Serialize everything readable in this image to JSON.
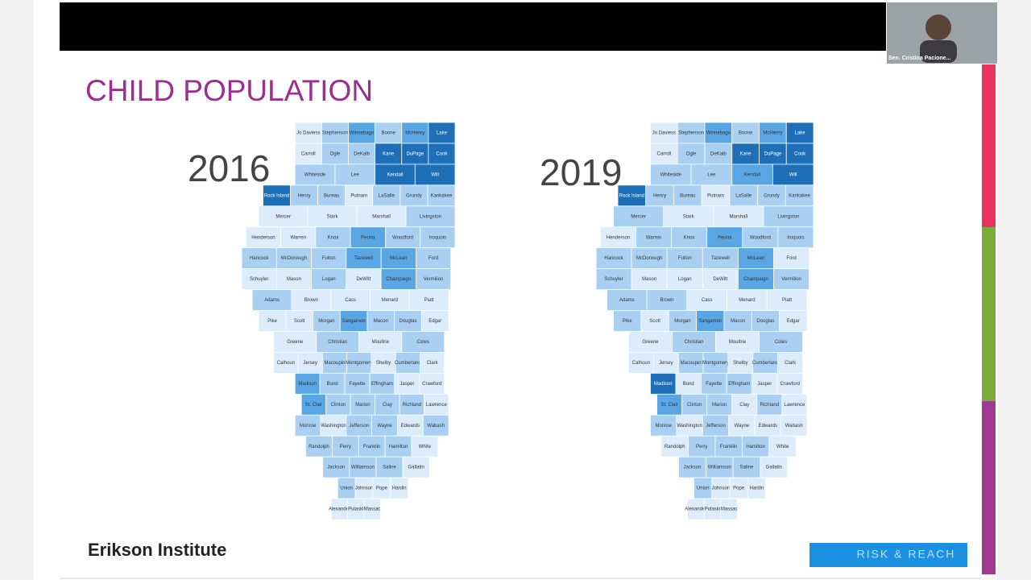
{
  "header": {
    "title": "CHILD POPULATION"
  },
  "participant": {
    "name": "Sen. Cristina Pacione..."
  },
  "counties": [
    [
      "Jo Daviess",
      "Stephenson",
      "Winnebago",
      "Boone",
      "McHenry",
      "Lake"
    ],
    [
      "Carroll",
      "Ogle",
      "DeKalb",
      "Kane",
      "DuPage",
      "Cook"
    ],
    [
      "Whiteside",
      "Lee",
      "Kendall",
      "Will"
    ],
    [
      "Rock Island",
      "Henry",
      "Bureau",
      "Putnam",
      "LaSalle",
      "Grundy",
      "Kankakee"
    ],
    [
      "Mercer",
      "Stark",
      "Marshall",
      "Livingston"
    ],
    [
      "Henderson",
      "Warren",
      "Knox",
      "Peoria",
      "Woodford",
      "Iroquois"
    ],
    [
      "Hancock",
      "McDonough",
      "Fulton",
      "Tazewell",
      "McLean",
      "Ford"
    ],
    [
      "Schuyler",
      "Mason",
      "Logan",
      "DeWitt",
      "Champaign",
      "Vermilion"
    ],
    [
      "Adams",
      "Brown",
      "Cass",
      "Menard",
      "Piatt"
    ],
    [
      "Pike",
      "Scott",
      "Morgan",
      "Sangamon",
      "Macon",
      "Douglas",
      "Edgar"
    ],
    [
      "Greene",
      "Christian",
      "Moultrie",
      "Coles"
    ],
    [
      "Calhoun",
      "Jersey",
      "Macoupin",
      "Montgomery",
      "Shelby",
      "Cumberland",
      "Clark"
    ],
    [
      "Madison",
      "Bond",
      "Fayette",
      "Effingham",
      "Jasper",
      "Crawford"
    ],
    [
      "St. Clair",
      "Clinton",
      "Marion",
      "Clay",
      "Richland",
      "Lawrence"
    ],
    [
      "Monroe",
      "Washington",
      "Jefferson",
      "Wayne",
      "Edwards",
      "Wabash"
    ],
    [
      "Randolph",
      "Perry",
      "Franklin",
      "Hamilton",
      "White"
    ],
    [
      "Jackson",
      "Williamson",
      "Saline",
      "Gallatin"
    ],
    [
      "Union",
      "Johnson",
      "Pope",
      "Hardin"
    ],
    [
      "Alexander",
      "Pulaski",
      "Massac"
    ]
  ],
  "palette": [
    "#dcecfa",
    "#a9d0f2",
    "#5aa6e4",
    "#1f6fb8"
  ],
  "maps": [
    {
      "year": "2016",
      "shades": [
        [
          0,
          1,
          2,
          1,
          2,
          3
        ],
        [
          0,
          1,
          1,
          3,
          3,
          3
        ],
        [
          1,
          1,
          3,
          3
        ],
        [
          3,
          1,
          1,
          0,
          1,
          1,
          1
        ],
        [
          0,
          0,
          0,
          1
        ],
        [
          0,
          0,
          1,
          2,
          1,
          1
        ],
        [
          1,
          1,
          1,
          2,
          2,
          1
        ],
        [
          0,
          0,
          1,
          0,
          2,
          1
        ],
        [
          1,
          0,
          0,
          0,
          0
        ],
        [
          0,
          0,
          1,
          2,
          1,
          1,
          0
        ],
        [
          0,
          1,
          0,
          1
        ],
        [
          0,
          0,
          1,
          1,
          0,
          1,
          0
        ],
        [
          2,
          1,
          1,
          1,
          0,
          0
        ],
        [
          2,
          1,
          1,
          1,
          1,
          0
        ],
        [
          1,
          0,
          1,
          1,
          0,
          1
        ],
        [
          1,
          1,
          1,
          1,
          0
        ],
        [
          1,
          1,
          1,
          0
        ],
        [
          1,
          0,
          0,
          0
        ],
        [
          0,
          0,
          0
        ]
      ]
    },
    {
      "year": "2019",
      "shades": [
        [
          0,
          1,
          2,
          1,
          2,
          3
        ],
        [
          0,
          1,
          1,
          3,
          3,
          3
        ],
        [
          1,
          1,
          2,
          3
        ],
        [
          3,
          1,
          1,
          0,
          1,
          1,
          1
        ],
        [
          1,
          0,
          0,
          1
        ],
        [
          0,
          1,
          1,
          2,
          1,
          1
        ],
        [
          1,
          1,
          1,
          1,
          2,
          0
        ],
        [
          1,
          0,
          0,
          0,
          2,
          1
        ],
        [
          1,
          1,
          0,
          0,
          0
        ],
        [
          1,
          0,
          1,
          2,
          1,
          1,
          0
        ],
        [
          0,
          1,
          0,
          1
        ],
        [
          0,
          0,
          1,
          1,
          0,
          1,
          0
        ],
        [
          3,
          0,
          1,
          1,
          0,
          0
        ],
        [
          2,
          1,
          1,
          0,
          1,
          0
        ],
        [
          1,
          0,
          1,
          0,
          0,
          0
        ],
        [
          0,
          1,
          1,
          1,
          0
        ],
        [
          1,
          1,
          1,
          0
        ],
        [
          1,
          0,
          0,
          0
        ],
        [
          0,
          0,
          0
        ]
      ]
    }
  ],
  "footer": {
    "logo": "Erikson Institute",
    "tag": "RISK & REACH"
  }
}
